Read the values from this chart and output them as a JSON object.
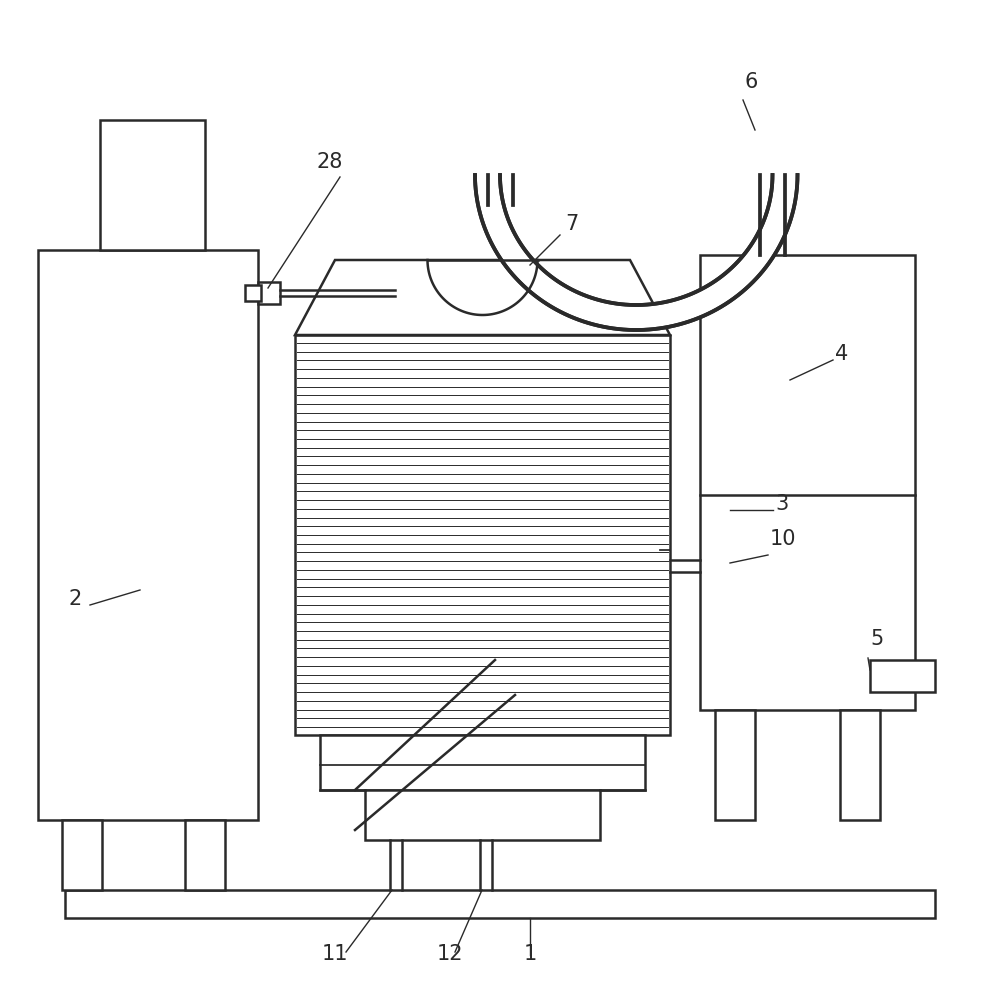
{
  "bg_color": "#ffffff",
  "line_color": "#2a2a2a",
  "lw": 1.8,
  "label_color": "#2a2a2a",
  "label_fontsize": 15,
  "fig_w": 10.0,
  "fig_h": 9.9,
  "dpi": 100
}
